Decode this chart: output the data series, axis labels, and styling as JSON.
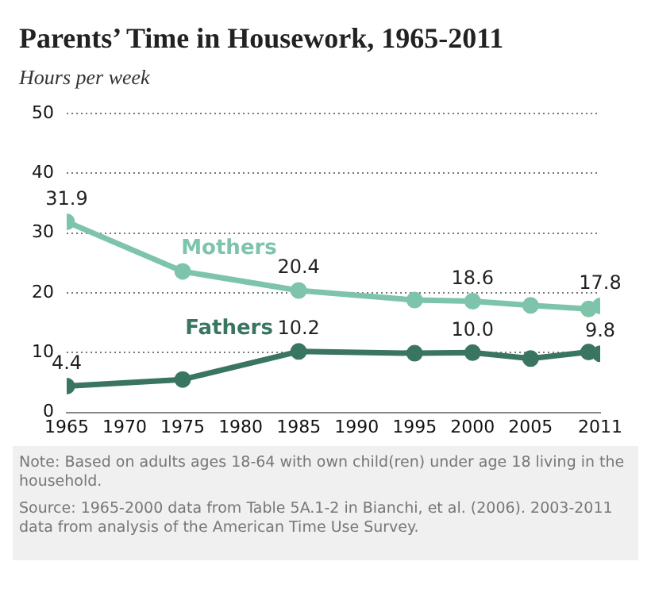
{
  "chart_data": {
    "type": "line",
    "title": "Parents’ Time in Housework, 1965-2011",
    "ylabel": "Hours per week",
    "x": [
      1965,
      1975,
      1985,
      1995,
      2000,
      2005,
      2010,
      2011
    ],
    "series": [
      {
        "name": "Mothers",
        "color": "#7dc4ab",
        "values": [
          31.9,
          23.6,
          20.4,
          18.8,
          18.6,
          17.9,
          17.3,
          17.8
        ],
        "value_labels": [
          "31.9",
          null,
          "20.4",
          null,
          "18.6",
          null,
          null,
          "17.8"
        ]
      },
      {
        "name": "Fathers",
        "color": "#3a7562",
        "values": [
          4.4,
          5.5,
          10.2,
          9.9,
          10.0,
          9.0,
          10.1,
          9.8
        ],
        "value_labels": [
          "4.4",
          null,
          "10.2",
          null,
          "10.0",
          null,
          null,
          "9.8"
        ]
      }
    ],
    "xlim": [
      1965,
      2011
    ],
    "xticks": [
      1965,
      1970,
      1975,
      1980,
      1985,
      1990,
      1995,
      2000,
      2005,
      2011
    ],
    "ylim": [
      0,
      50
    ],
    "yticks": [
      0,
      10,
      20,
      30,
      40,
      50
    ],
    "grid": "y",
    "legend": false,
    "marker": "circle",
    "line_style": "solid",
    "annotations": [
      "Note: Based on adults ages 18-64 with own child(ren) under age 18 living in the household.",
      "Source: 1965-2000 data from Table 5A.1-2 in Bianchi, et al. (2006). 2003-2011 data from analysis of the American Time Use Survey."
    ]
  }
}
